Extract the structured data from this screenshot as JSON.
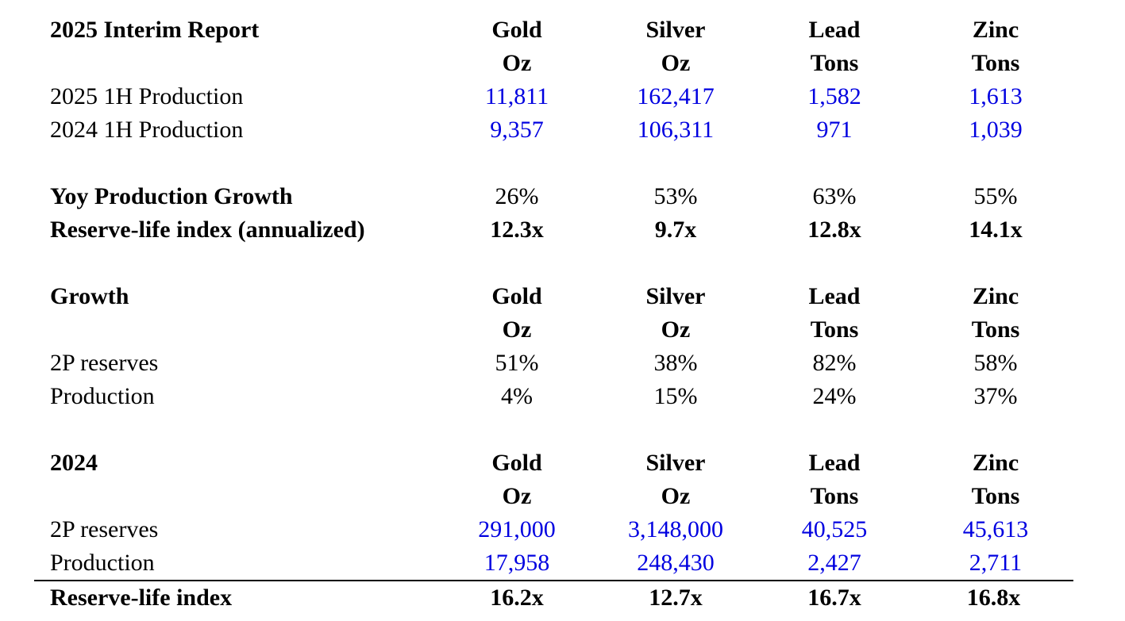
{
  "colors": {
    "value_blue": "#0000e0",
    "text_black": "#000000",
    "rule_black": "#000000",
    "background": "#ffffff"
  },
  "table": {
    "sections": [
      {
        "title": "2025 Interim Report",
        "columns": [
          "Gold",
          "Silver",
          "Lead",
          "Zinc"
        ],
        "units": [
          "Oz",
          "Oz",
          "Tons",
          "Tons"
        ],
        "rows": [
          {
            "label": "2025 1H Production",
            "values": [
              "11,811",
              "162,417",
              "1,582",
              "1,613"
            ]
          },
          {
            "label": "2024 1H Production",
            "values": [
              "9,357",
              "106,311",
              "971",
              "1,039"
            ]
          },
          {
            "label": "Yoy Production Growth",
            "values": [
              "26%",
              "53%",
              "63%",
              "55%"
            ]
          },
          {
            "label": "Reserve-life index (annualized)",
            "values": [
              "12.3x",
              "9.7x",
              "12.8x",
              "14.1x"
            ]
          }
        ]
      },
      {
        "title": "Growth",
        "columns": [
          "Gold",
          "Silver",
          "Lead",
          "Zinc"
        ],
        "units": [
          "Oz",
          "Oz",
          "Tons",
          "Tons"
        ],
        "rows": [
          {
            "label": "2P reserves",
            "values": [
              "51%",
              "38%",
              "82%",
              "58%"
            ]
          },
          {
            "label": "Production",
            "values": [
              "4%",
              "15%",
              "24%",
              "37%"
            ]
          }
        ]
      },
      {
        "title": "2024",
        "columns": [
          "Gold",
          "Silver",
          "Lead",
          "Zinc"
        ],
        "units": [
          "Oz",
          "Oz",
          "Tons",
          "Tons"
        ],
        "rows": [
          {
            "label": "2P reserves",
            "values": [
              "291,000",
              "3,148,000",
              "40,525",
              "45,613"
            ]
          },
          {
            "label": "Production",
            "values": [
              "17,958",
              "248,430",
              "2,427",
              "2,711"
            ]
          },
          {
            "label": "Reserve-life index",
            "values": [
              "16.2x",
              "12.7x",
              "16.7x",
              "16.8x"
            ]
          }
        ]
      }
    ]
  }
}
